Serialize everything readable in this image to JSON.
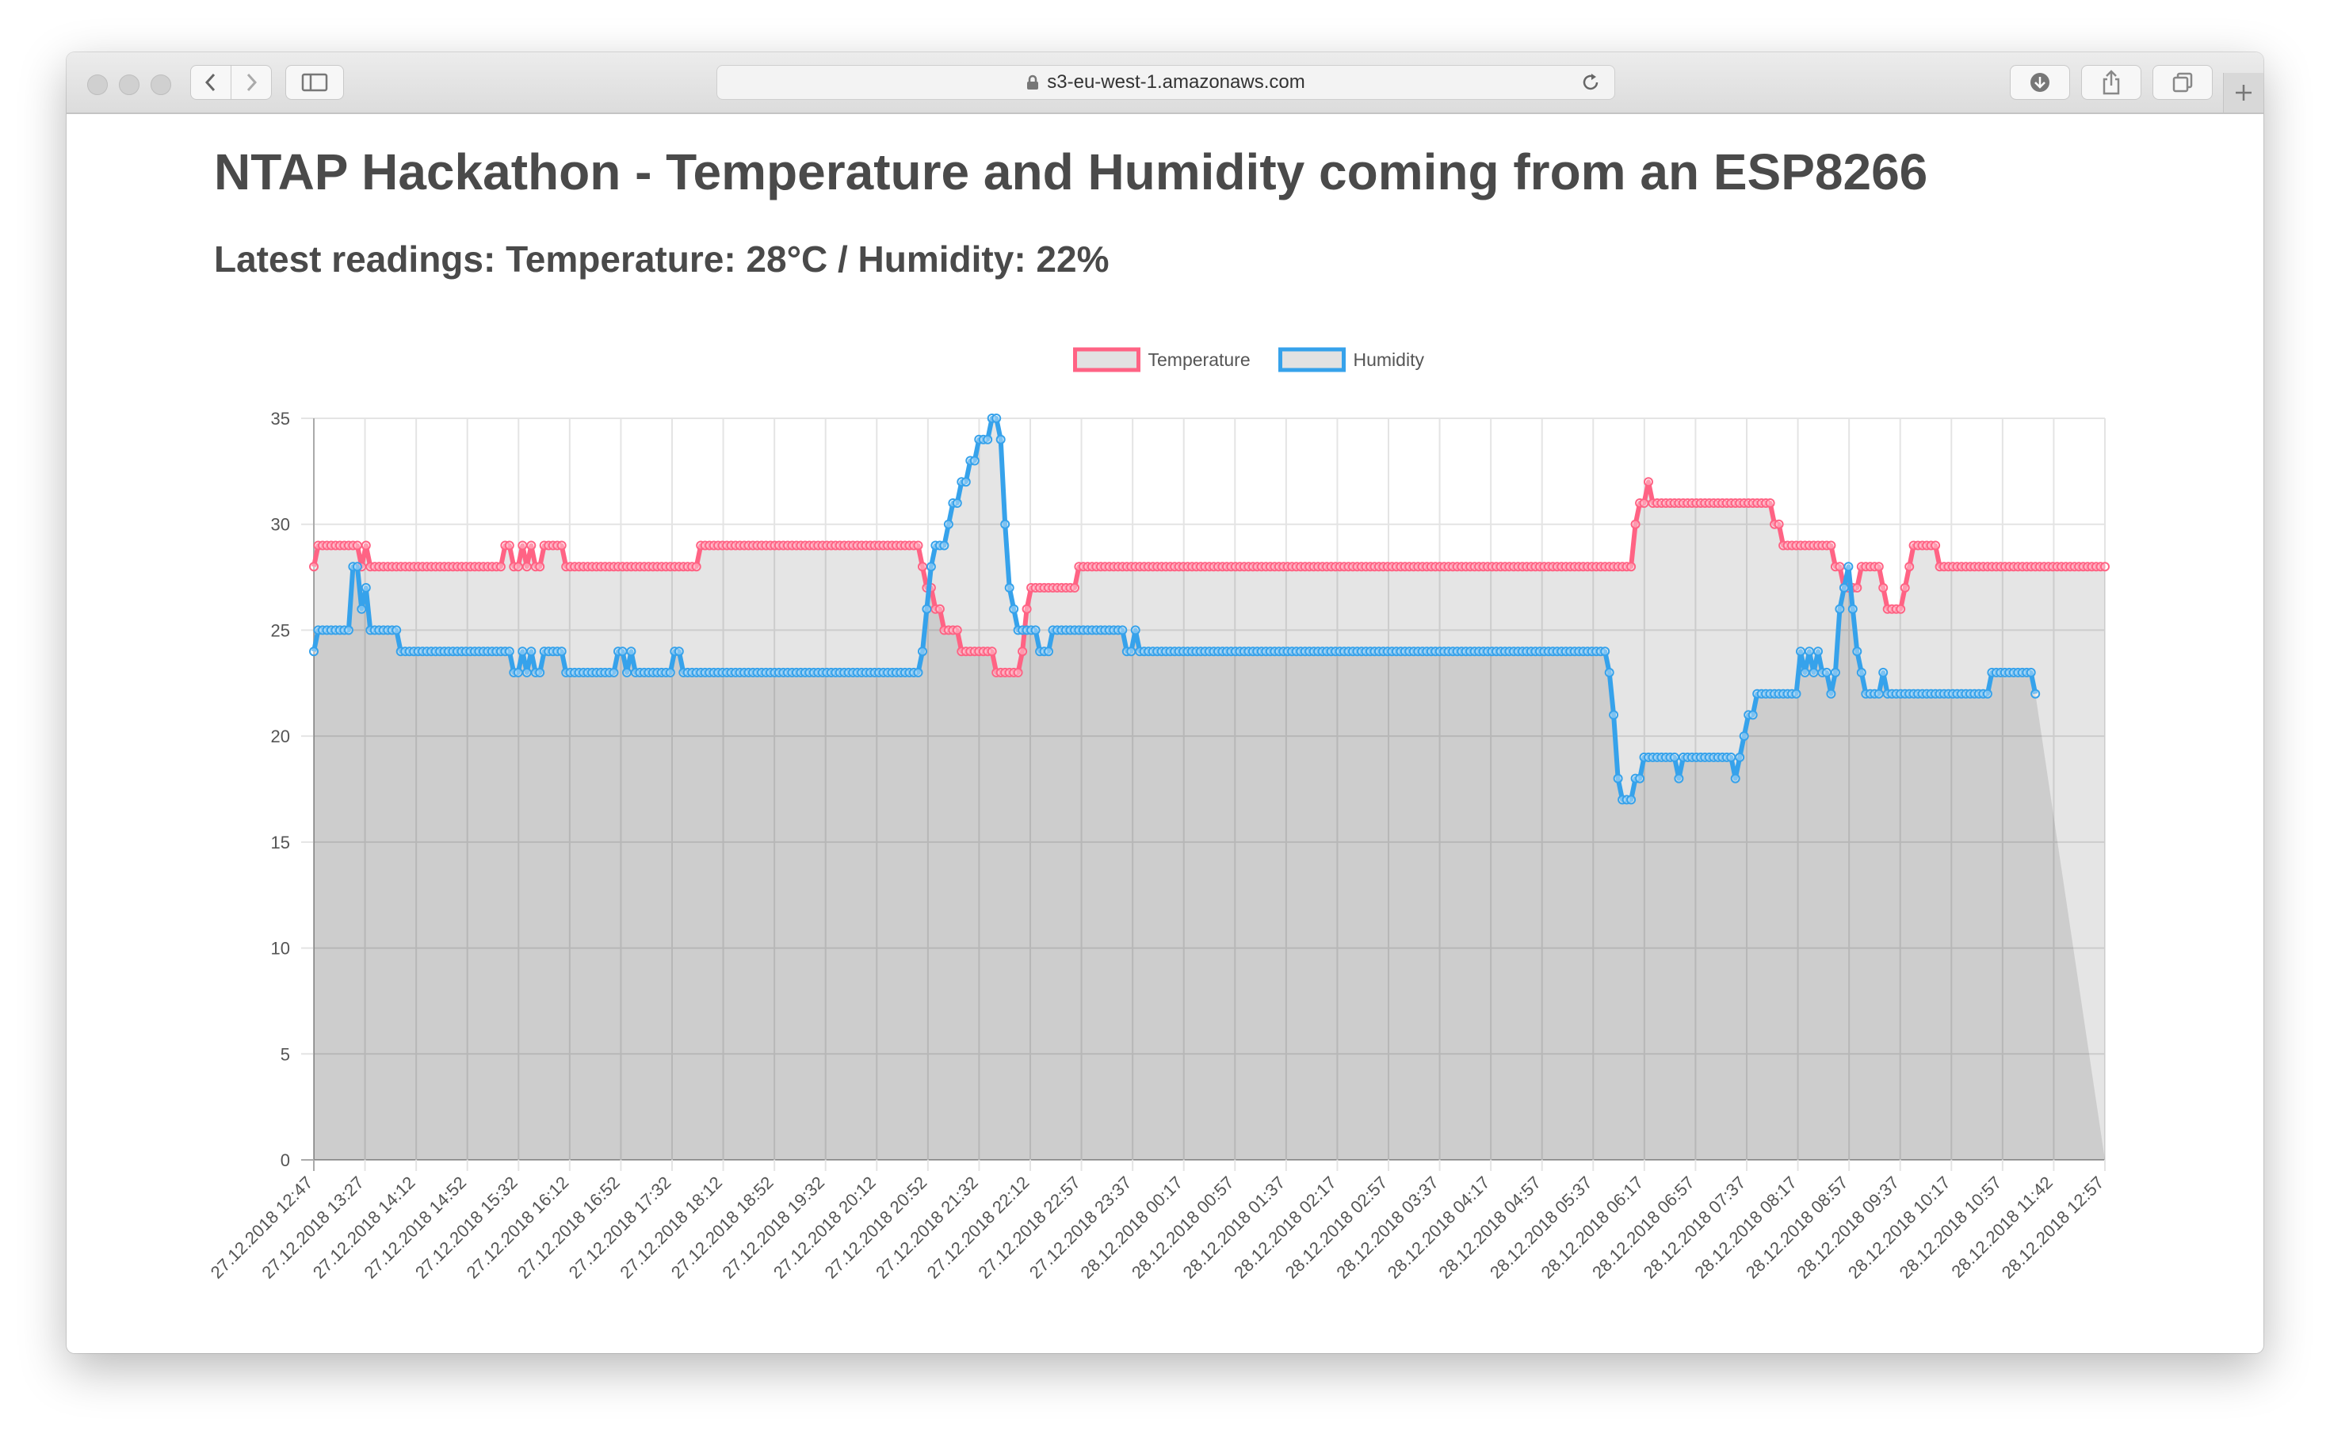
{
  "browser": {
    "url": "s3-eu-west-1.amazonaws.com"
  },
  "page": {
    "title": "NTAP Hackathon - Temperature and Humidity coming from an ESP8266",
    "latest_readings": "Latest readings: Temperature: 28°C / Humidity: 22%"
  },
  "chart_data": {
    "type": "line",
    "legend_position": "top",
    "grid": true,
    "ylim": [
      0,
      35
    ],
    "yticks": [
      0,
      5,
      10,
      15,
      20,
      25,
      30,
      35
    ],
    "x_tick_labels": [
      "27.12.2018 12:47",
      "27.12.2018 13:27",
      "27.12.2018 14:12",
      "27.12.2018 14:52",
      "27.12.2018 15:32",
      "27.12.2018 16:12",
      "27.12.2018 16:52",
      "27.12.2018 17:32",
      "27.12.2018 18:12",
      "27.12.2018 18:52",
      "27.12.2018 19:32",
      "27.12.2018 20:12",
      "27.12.2018 20:52",
      "27.12.2018 21:32",
      "27.12.2018 22:12",
      "27.12.2018 22:57",
      "27.12.2018 23:37",
      "28.12.2018 00:17",
      "28.12.2018 00:57",
      "28.12.2018 01:37",
      "28.12.2018 02:17",
      "28.12.2018 02:57",
      "28.12.2018 03:37",
      "28.12.2018 04:17",
      "28.12.2018 04:57",
      "28.12.2018 05:37",
      "28.12.2018 06:17",
      "28.12.2018 06:57",
      "28.12.2018 07:37",
      "28.12.2018 08:17",
      "28.12.2018 08:57",
      "28.12.2018 09:37",
      "28.12.2018 10:17",
      "28.12.2018 10:57",
      "28.12.2018 11:42",
      "28.12.2018 12:57"
    ],
    "series": [
      {
        "name": "Temperature",
        "color": "#ff6384",
        "fill": "rgba(0,0,0,0.10)",
        "values": [
          28,
          29,
          29,
          29,
          29,
          29,
          29,
          29,
          29,
          29,
          29,
          28,
          29,
          28,
          28,
          28,
          28,
          28,
          28,
          28,
          28,
          28,
          28,
          28,
          28,
          28,
          28,
          28,
          28,
          28,
          28,
          28,
          28,
          28,
          28,
          28,
          28,
          28,
          28,
          28,
          28,
          28,
          28,
          28,
          29,
          29,
          28,
          28,
          29,
          28,
          29,
          28,
          28,
          29,
          29,
          29,
          29,
          29,
          28,
          28,
          28,
          28,
          28,
          28,
          28,
          28,
          28,
          28,
          28,
          28,
          28,
          28,
          28,
          28,
          28,
          28,
          28,
          28,
          28,
          28,
          28,
          28,
          28,
          28,
          28,
          28,
          28,
          28,
          28,
          29,
          29,
          29,
          29,
          29,
          29,
          29,
          29,
          29,
          29,
          29,
          29,
          29,
          29,
          29,
          29,
          29,
          29,
          29,
          29,
          29,
          29,
          29,
          29,
          29,
          29,
          29,
          29,
          29,
          29,
          29,
          29,
          29,
          29,
          29,
          29,
          29,
          29,
          29,
          29,
          29,
          29,
          29,
          29,
          29,
          29,
          29,
          29,
          29,
          29,
          29,
          28,
          27,
          27,
          26,
          26,
          25,
          25,
          25,
          25,
          24,
          24,
          24,
          24,
          24,
          24,
          24,
          24,
          23,
          23,
          23,
          23,
          23,
          23,
          24,
          26,
          27,
          27,
          27,
          27,
          27,
          27,
          27,
          27,
          27,
          27,
          27,
          28,
          28,
          28,
          28,
          28,
          28,
          28,
          28,
          28,
          28,
          28,
          28,
          28,
          28,
          28,
          28,
          28,
          28,
          28,
          28,
          28,
          28,
          28,
          28,
          28,
          28,
          28,
          28,
          28,
          28,
          28,
          28,
          28,
          28,
          28,
          28,
          28,
          28,
          28,
          28,
          28,
          28,
          28,
          28,
          28,
          28,
          28,
          28,
          28,
          28,
          28,
          28,
          28,
          28,
          28,
          28,
          28,
          28,
          28,
          28,
          28,
          28,
          28,
          28,
          28,
          28,
          28,
          28,
          28,
          28,
          28,
          28,
          28,
          28,
          28,
          28,
          28,
          28,
          28,
          28,
          28,
          28,
          28,
          28,
          28,
          28,
          28,
          28,
          28,
          28,
          28,
          28,
          28,
          28,
          28,
          28,
          28,
          28,
          28,
          28,
          28,
          28,
          28,
          28,
          28,
          28,
          28,
          28,
          28,
          28,
          28,
          28,
          28,
          28,
          28,
          28,
          28,
          28,
          28,
          28,
          28,
          28,
          28,
          28,
          28,
          28,
          28,
          28,
          30,
          31,
          31,
          32,
          31,
          31,
          31,
          31,
          31,
          31,
          31,
          31,
          31,
          31,
          31,
          31,
          31,
          31,
          31,
          31,
          31,
          31,
          31,
          31,
          31,
          31,
          31,
          31,
          31,
          31,
          31,
          31,
          30,
          30,
          29,
          29,
          29,
          29,
          29,
          29,
          29,
          29,
          29,
          29,
          29,
          29,
          28,
          28,
          27,
          27,
          27,
          27,
          28,
          28,
          28,
          28,
          28,
          27,
          26,
          26,
          26,
          26,
          27,
          28,
          29,
          29,
          29,
          29,
          29,
          29,
          28,
          28,
          28,
          28,
          28,
          28,
          28,
          28,
          28,
          28,
          28,
          28,
          28,
          28,
          28,
          28,
          28,
          28,
          28,
          28,
          28,
          28,
          28,
          28,
          28,
          28,
          28,
          28,
          28,
          28,
          28,
          28,
          28,
          28,
          28,
          28,
          28,
          28,
          28
        ]
      },
      {
        "name": "Humidity",
        "color": "#36a2eb",
        "fill": "rgba(0,0,0,0.10)",
        "values": [
          24,
          25,
          25,
          25,
          25,
          25,
          25,
          25,
          25,
          28,
          28,
          26,
          27,
          25,
          25,
          25,
          25,
          25,
          25,
          25,
          24,
          24,
          24,
          24,
          24,
          24,
          24,
          24,
          24,
          24,
          24,
          24,
          24,
          24,
          24,
          24,
          24,
          24,
          24,
          24,
          24,
          24,
          24,
          24,
          24,
          24,
          23,
          23,
          24,
          23,
          24,
          23,
          23,
          24,
          24,
          24,
          24,
          24,
          23,
          23,
          23,
          23,
          23,
          23,
          23,
          23,
          23,
          23,
          23,
          23,
          24,
          24,
          23,
          24,
          23,
          23,
          23,
          23,
          23,
          23,
          23,
          23,
          23,
          24,
          24,
          23,
          23,
          23,
          23,
          23,
          23,
          23,
          23,
          23,
          23,
          23,
          23,
          23,
          23,
          23,
          23,
          23,
          23,
          23,
          23,
          23,
          23,
          23,
          23,
          23,
          23,
          23,
          23,
          23,
          23,
          23,
          23,
          23,
          23,
          23,
          23,
          23,
          23,
          23,
          23,
          23,
          23,
          23,
          23,
          23,
          23,
          23,
          23,
          23,
          23,
          23,
          23,
          23,
          23,
          23,
          24,
          26,
          28,
          29,
          29,
          29,
          30,
          31,
          31,
          32,
          32,
          33,
          33,
          34,
          34,
          34,
          35,
          35,
          34,
          30,
          27,
          26,
          25,
          25,
          25,
          25,
          25,
          24,
          24,
          24,
          25,
          25,
          25,
          25,
          25,
          25,
          25,
          25,
          25,
          25,
          25,
          25,
          25,
          25,
          25,
          25,
          25,
          24,
          24,
          25,
          24,
          24,
          24,
          24,
          24,
          24,
          24,
          24,
          24,
          24,
          24,
          24,
          24,
          24,
          24,
          24,
          24,
          24,
          24,
          24,
          24,
          24,
          24,
          24,
          24,
          24,
          24,
          24,
          24,
          24,
          24,
          24,
          24,
          24,
          24,
          24,
          24,
          24,
          24,
          24,
          24,
          24,
          24,
          24,
          24,
          24,
          24,
          24,
          24,
          24,
          24,
          24,
          24,
          24,
          24,
          24,
          24,
          24,
          24,
          24,
          24,
          24,
          24,
          24,
          24,
          24,
          24,
          24,
          24,
          24,
          24,
          24,
          24,
          24,
          24,
          24,
          24,
          24,
          24,
          24,
          24,
          24,
          24,
          24,
          24,
          24,
          24,
          24,
          24,
          24,
          24,
          24,
          24,
          24,
          24,
          24,
          24,
          24,
          24,
          24,
          24,
          24,
          24,
          24,
          24,
          24,
          24,
          24,
          23,
          21,
          18,
          17,
          17,
          17,
          18,
          18,
          19,
          19,
          19,
          19,
          19,
          19,
          19,
          19,
          18,
          19,
          19,
          19,
          19,
          19,
          19,
          19,
          19,
          19,
          19,
          19,
          19,
          18,
          19,
          20,
          21,
          21,
          22,
          22,
          22,
          22,
          22,
          22,
          22,
          22,
          22,
          22,
          24,
          23,
          24,
          23,
          24,
          23,
          23,
          22,
          23,
          26,
          27,
          28,
          26,
          24,
          23,
          22,
          22,
          22,
          22,
          23,
          22,
          22,
          22,
          22,
          22,
          22,
          22,
          22,
          22,
          22,
          22,
          22,
          22,
          22,
          22,
          22,
          22,
          22,
          22,
          22,
          22,
          22,
          22,
          22,
          23,
          23,
          23,
          23,
          23,
          23,
          23,
          23,
          23,
          23,
          22
        ]
      }
    ]
  }
}
